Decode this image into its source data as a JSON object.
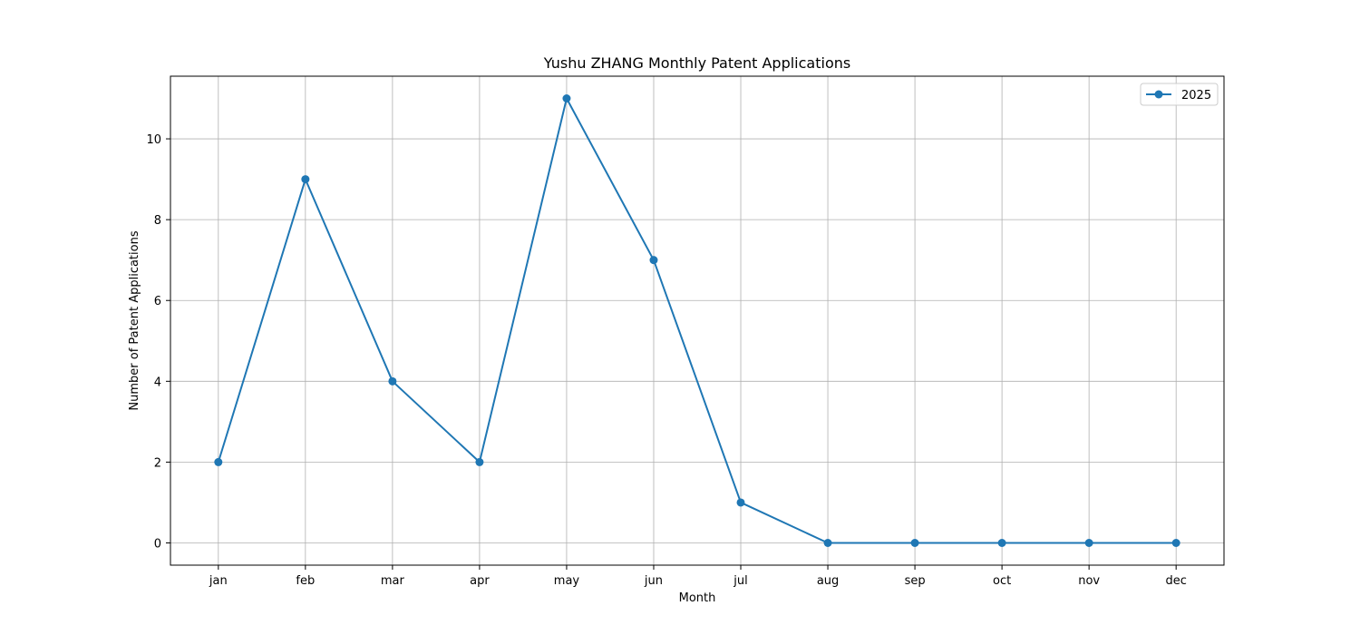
{
  "chart_data": {
    "type": "line",
    "title": "Yushu ZHANG Monthly Patent Applications",
    "xlabel": "Month",
    "ylabel": "Number of Patent Applications",
    "categories": [
      "jan",
      "feb",
      "mar",
      "apr",
      "may",
      "jun",
      "jul",
      "aug",
      "sep",
      "oct",
      "nov",
      "dec"
    ],
    "series": [
      {
        "name": "2025",
        "values": [
          2,
          9,
          4,
          2,
          11,
          7,
          1,
          0,
          0,
          0,
          0,
          0
        ],
        "color": "#1f77b4",
        "marker": "circle"
      }
    ],
    "yticks": [
      0,
      2,
      4,
      6,
      8,
      10
    ],
    "ylim": [
      -0.55,
      11.55
    ],
    "grid": true,
    "legend_position": "top-right"
  }
}
